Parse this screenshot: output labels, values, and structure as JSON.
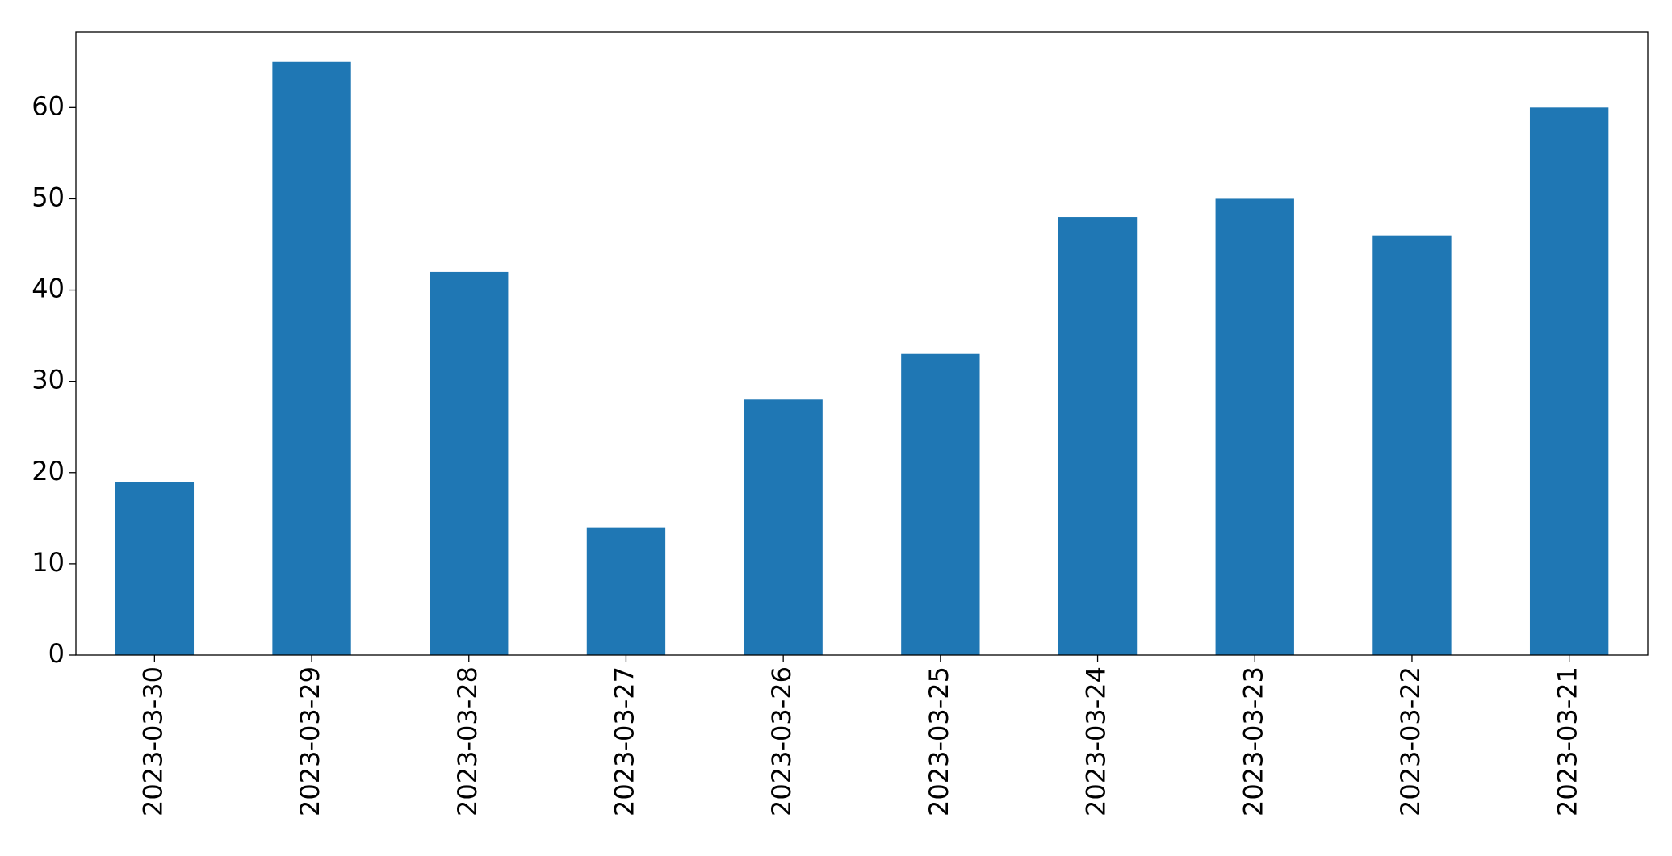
{
  "chart_data": {
    "type": "bar",
    "categories": [
      "2023-03-30",
      "2023-03-29",
      "2023-03-28",
      "2023-03-27",
      "2023-03-26",
      "2023-03-25",
      "2023-03-24",
      "2023-03-23",
      "2023-03-22",
      "2023-03-21"
    ],
    "values": [
      19,
      65,
      42,
      14,
      28,
      33,
      48,
      50,
      46,
      60
    ],
    "color": "#1f77b4",
    "ylim": [
      0,
      68.25
    ],
    "yticks": [
      0,
      10,
      20,
      30,
      40,
      50,
      60
    ],
    "grid": false
  }
}
